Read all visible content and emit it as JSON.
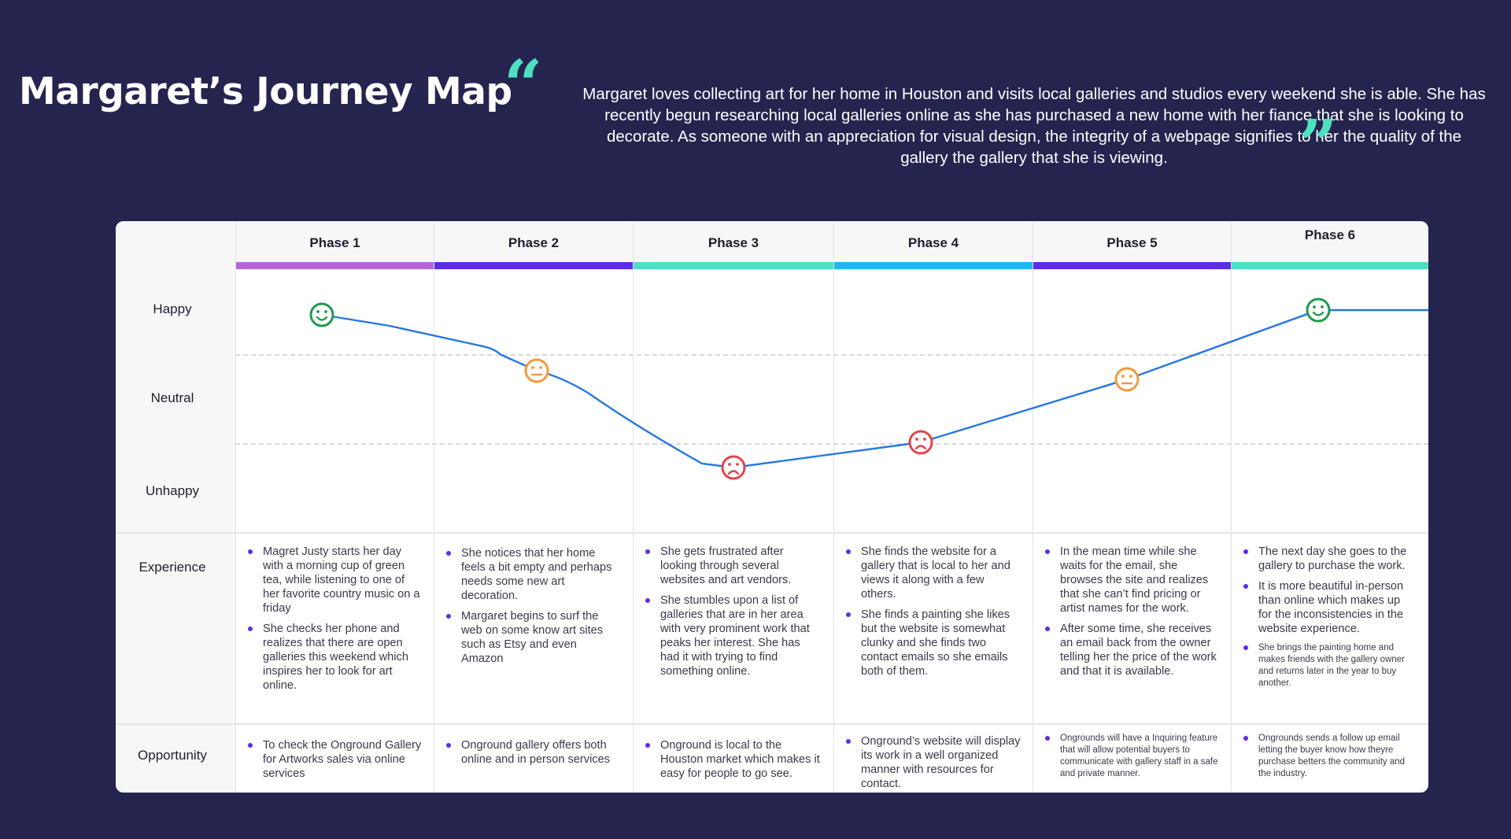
{
  "title": "Margaret’s Journey Map",
  "intro": "Margaret loves collecting art for her home in Houston and visits local galleries and studios every weekend she is able. She has recently begun researching local galleries online as she has purchased a new home with her fiance that she is looking to decorate. As someone with an appreciation for visual design, the integrity of a webpage signifies to her the quality of the gallery the gallery that she is viewing.",
  "quote_open": "“",
  "quote_close": "”",
  "row_labels": {
    "happy": "Happy",
    "neutral": "Neutral",
    "unhappy": "Unhappy",
    "experience": "Experience",
    "opportunity": "Opportunity"
  },
  "colors": {
    "background": "#25244f",
    "accent_teal": "#4ee0c0",
    "curve": "#2677e0",
    "happy": "#1f9a4c",
    "neutral": "#f3993d",
    "unhappy": "#e2454c",
    "bullet": "#5b2ee6"
  },
  "phases": [
    {
      "title": "Phase 1",
      "color": "#b565d9",
      "mood": "happy",
      "icon": "happy-face-icon",
      "experience": [
        "Magret Justy  starts her day with a morning cup of green tea, while listening to one of her favorite country music on a friday",
        "She checks her phone and realizes that there are open galleries this weekend which inspires her to look for art online."
      ],
      "opportunity": [
        "To check the Onground Gallery for Artworks sales via online services"
      ]
    },
    {
      "title": "Phase 2",
      "color": "#5b2ee6",
      "mood": "neutral",
      "icon": "neutral-face-icon",
      "experience": [
        "She notices that her home feels a bit empty and perhaps needs some new art decoration.",
        "Margaret begins to surf the web on some know art sites such as Etsy and even Amazon"
      ],
      "opportunity": [
        "Onground gallery offers both online and in person services"
      ]
    },
    {
      "title": "Phase 3",
      "color": "#4ee0c0",
      "mood": "unhappy",
      "icon": "sad-face-icon",
      "experience": [
        "She gets frustrated after looking through several websites and art vendors.",
        "She stumbles upon a list of galleries that are in her area with very prominent work that peaks her interest. She has had it with trying to find something online."
      ],
      "opportunity": [
        "Onground is local to the Houston market which makes it easy for people to go see."
      ]
    },
    {
      "title": "Phase 4",
      "color": "#20b8ee",
      "mood": "unhappy",
      "icon": "sad-face-icon",
      "experience": [
        "She finds the website for a gallery that is local to her and views it along with a few others.",
        "She finds a painting she likes but the website is somewhat clunky and she finds two contact emails so she emails both of them."
      ],
      "opportunity": [
        "Onground’s website will display its work in a well organized manner with resources for contact."
      ]
    },
    {
      "title": "Phase 5",
      "color": "#5b2ee6",
      "mood": "neutral",
      "icon": "neutral-face-icon",
      "experience": [
        "In the mean time while she waits for the email, she browses the site and realizes that she can’t find pricing or artist names for the work.",
        "After some time, she receives an email back from the owner telling her the price of the work and that it is available."
      ],
      "opportunity": [
        "Ongrounds will have a Inquiring feature that will allow potential buyers to communicate with gallery staff in a safe and private manner."
      ]
    },
    {
      "title": "Phase 6",
      "color": "#4ee0c0",
      "mood": "happy",
      "icon": "happy-face-icon",
      "experience": [
        "The next day she goes to the gallery to purchase the work.",
        "It is more beautiful in-person than online which makes up for the inconsistencies in the website experience.",
        "She brings the painting home and makes friends with the gallery owner and returns later in the year to buy another."
      ],
      "opportunity": [
        "Ongrounds sends a follow up email letting the buyer know how theyre purchase betters the community and the industry."
      ]
    }
  ]
}
